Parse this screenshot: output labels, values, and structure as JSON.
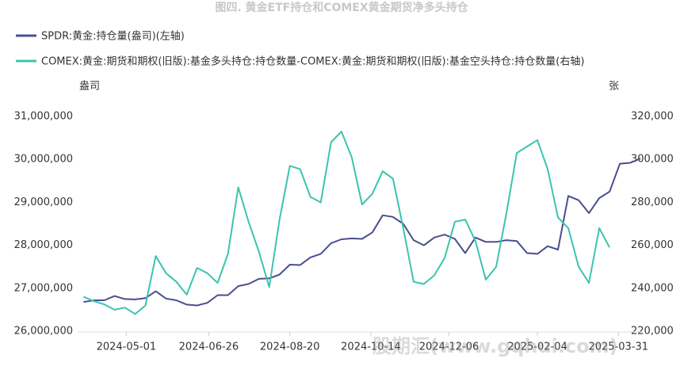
{
  "chart_data": {
    "type": "line",
    "title": "图四. 黄金ETF持仓和COMEX黄金期货净多头持仓",
    "watermark": "股期汇(www.gqhui.com)",
    "ylabel": "盎司",
    "y2label": "张",
    "x": [
      "2024-04-02",
      "2024-04-09",
      "2024-04-16",
      "2024-04-23",
      "2024-04-30",
      "2024-05-07",
      "2024-05-14",
      "2024-05-21",
      "2024-05-28",
      "2024-06-04",
      "2024-06-11",
      "2024-06-18",
      "2024-06-25",
      "2024-07-02",
      "2024-07-09",
      "2024-07-16",
      "2024-07-23",
      "2024-07-30",
      "2024-08-06",
      "2024-08-13",
      "2024-08-20",
      "2024-08-27",
      "2024-09-03",
      "2024-09-10",
      "2024-09-17",
      "2024-09-24",
      "2024-10-01",
      "2024-10-08",
      "2024-10-15",
      "2024-10-22",
      "2024-10-29",
      "2024-11-05",
      "2024-11-12",
      "2024-11-19",
      "2024-11-26",
      "2024-12-03",
      "2024-12-10",
      "2024-12-17",
      "2024-12-24",
      "2024-12-31",
      "2025-01-07",
      "2025-01-14",
      "2025-01-21",
      "2025-01-28",
      "2025-02-04",
      "2025-02-11",
      "2025-02-18",
      "2025-02-25",
      "2025-03-04",
      "2025-03-11",
      "2025-03-18",
      "2025-03-25",
      "2025-04-01",
      "2025-04-08",
      "2025-04-15"
    ],
    "xlim": [
      "2024-03-29",
      "2025-04-16"
    ],
    "xticks": [
      "2024-05-01",
      "2024-06-26",
      "2024-08-20",
      "2024-10-14",
      "2024-12-06",
      "2025-02-04",
      "2025-03-31"
    ],
    "ylim": [
      26000000,
      31000000
    ],
    "yticks": [
      {
        "value": 26000000,
        "label": "26,000,000"
      },
      {
        "value": 27000000,
        "label": "27,000,000"
      },
      {
        "value": 28000000,
        "label": "28,000,000"
      },
      {
        "value": 29000000,
        "label": "29,000,000"
      },
      {
        "value": 30000000,
        "label": "30,000,000"
      },
      {
        "value": 31000000,
        "label": "31,000,000"
      }
    ],
    "y2lim": [
      220000,
      320000
    ],
    "y2ticks": [
      {
        "value": 220000,
        "label": "220,000"
      },
      {
        "value": 240000,
        "label": "240,000"
      },
      {
        "value": 260000,
        "label": "260,000"
      },
      {
        "value": 280000,
        "label": "280,000"
      },
      {
        "value": 300000,
        "label": "300,000"
      },
      {
        "value": 320000,
        "label": "320,000"
      }
    ],
    "series": [
      {
        "name": "SPDR:黄金:持仓量(盎司)(左轴)",
        "color": "#4a4e8f",
        "values": [
          26680000,
          26720000,
          26720000,
          26820000,
          26750000,
          26740000,
          26770000,
          26930000,
          26760000,
          26720000,
          26620000,
          26600000,
          26660000,
          26840000,
          26840000,
          27050000,
          27100000,
          27220000,
          27230000,
          27320000,
          27550000,
          27540000,
          27720000,
          27800000,
          28050000,
          28140000,
          28160000,
          28150000,
          28300000,
          28700000,
          28660000,
          28500000,
          28120000,
          28000000,
          28180000,
          28250000,
          28150000,
          27820000,
          28180000,
          28080000,
          28080000,
          28120000,
          28100000,
          27820000,
          27800000,
          27980000,
          27900000,
          29150000,
          29050000,
          28750000,
          29100000,
          29250000,
          29900000,
          29920000,
          30020000
        ]
      },
      {
        "name": "COMEX:黄金:期货和期权(旧版):基金多头持仓:持仓数量-COMEX:黄金:期货和期权(旧版):基金空头持仓:持仓数量(右轴)",
        "color": "#3cc3b0",
        "axis": "y2",
        "values": [
          236000,
          234000,
          232500,
          230000,
          231000,
          228000,
          232000,
          255000,
          247000,
          243000,
          237000,
          249500,
          247000,
          242500,
          256000,
          287000,
          271000,
          257000,
          240500,
          272000,
          297000,
          295500,
          282500,
          280000,
          308000,
          313000,
          301000,
          279000,
          284000,
          294500,
          291000,
          268000,
          243000,
          242000,
          246000,
          254000,
          271000,
          272000,
          262000,
          244000,
          250000,
          275000,
          303000,
          306000,
          309000,
          295500,
          273000,
          268000,
          250000,
          242500,
          268000,
          259000,
          null,
          null,
          null
        ]
      }
    ]
  }
}
